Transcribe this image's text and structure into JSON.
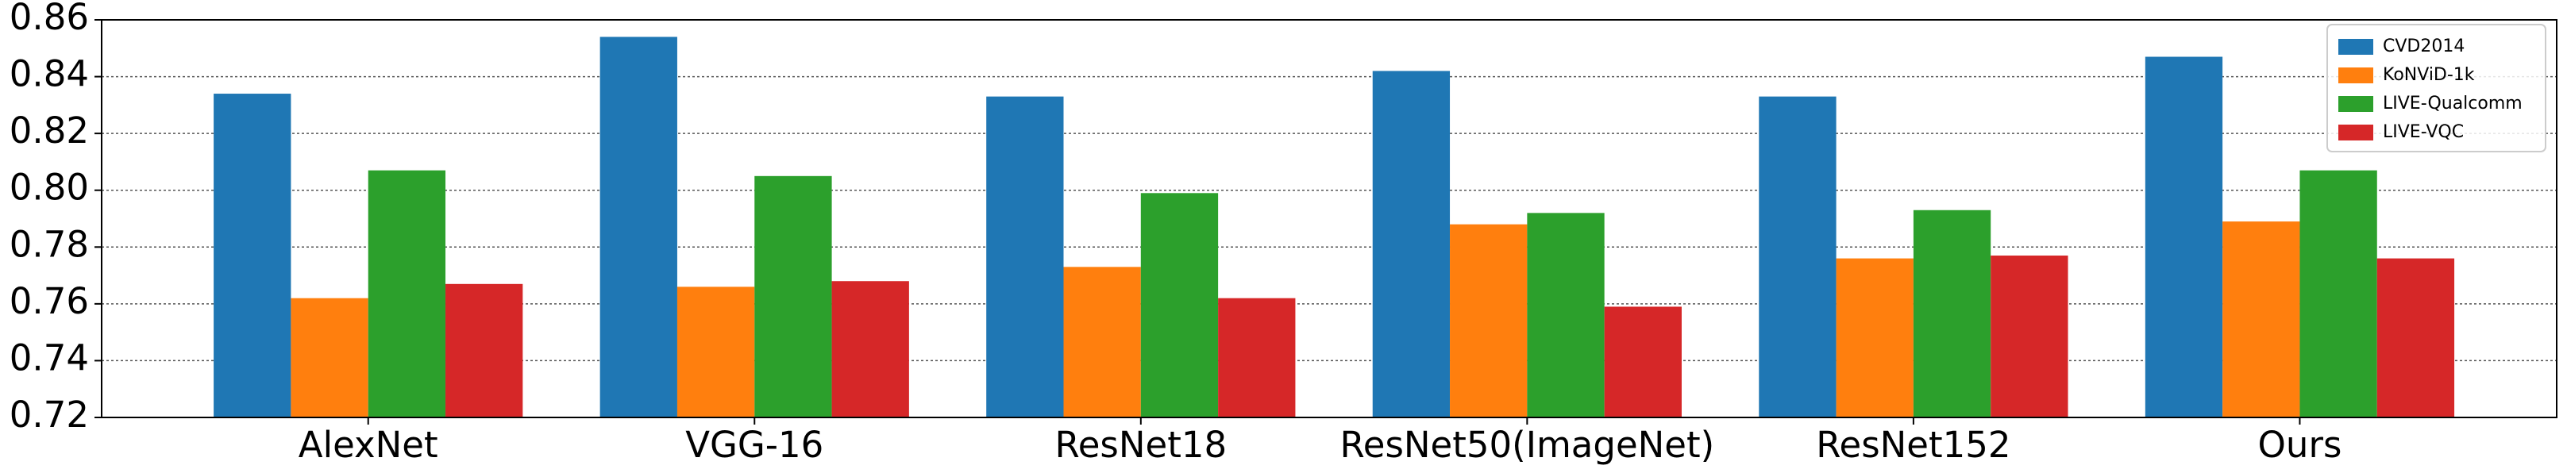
{
  "chart_data": {
    "type": "bar",
    "categories": [
      "AlexNet",
      "VGG-16",
      "ResNet18",
      "ResNet50(ImageNet)",
      "ResNet152",
      "Ours"
    ],
    "series": [
      {
        "name": "CVD2014",
        "color": "#1f77b4",
        "values": [
          0.834,
          0.854,
          0.833,
          0.842,
          0.833,
          0.847
        ]
      },
      {
        "name": "KoNViD-1k",
        "color": "#ff7f0e",
        "values": [
          0.762,
          0.766,
          0.773,
          0.788,
          0.776,
          0.789
        ]
      },
      {
        "name": "LIVE-Qualcomm",
        "color": "#2ca02c",
        "values": [
          0.807,
          0.805,
          0.799,
          0.792,
          0.793,
          0.807
        ]
      },
      {
        "name": "LIVE-VQC",
        "color": "#d62728",
        "values": [
          0.767,
          0.768,
          0.762,
          0.759,
          0.777,
          0.776
        ]
      }
    ],
    "ylim": [
      0.72,
      0.86
    ],
    "yticks": [
      {
        "value": 0.72,
        "label": "0.72"
      },
      {
        "value": 0.74,
        "label": "0.74"
      },
      {
        "value": 0.76,
        "label": "0.76"
      },
      {
        "value": 0.78,
        "label": "0.78"
      },
      {
        "value": 0.8,
        "label": "0.80"
      },
      {
        "value": 0.82,
        "label": "0.82"
      },
      {
        "value": 0.84,
        "label": "0.84"
      },
      {
        "value": 0.86,
        "label": "0.86"
      }
    ],
    "grid": true,
    "legend": "upper right"
  }
}
